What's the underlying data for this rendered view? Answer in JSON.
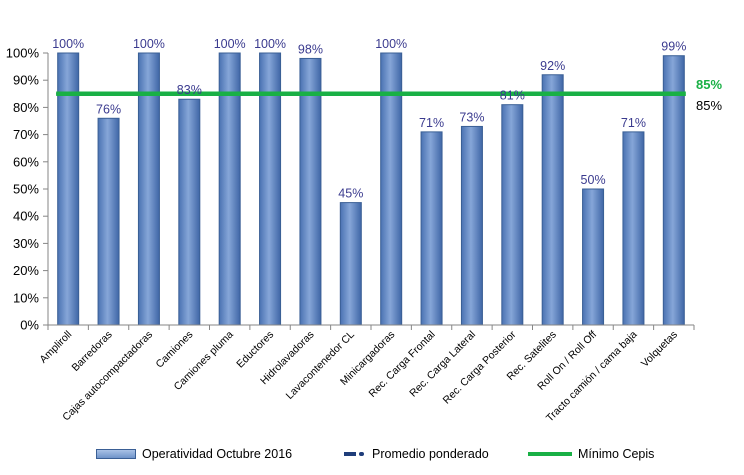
{
  "chart_data": {
    "type": "bar",
    "categories": [
      "Ampliroll",
      "Barredoras",
      "Cajas autocompactadoras",
      "Camiones",
      "Camiones pluma",
      "Eductores",
      "Hidrolavadoras",
      "Lavacontenedor CL",
      "Minicargadoras",
      "Rec. Carga Frontal",
      "Rec. Carga Lateral",
      "Rec. Carga Posterior",
      "Rec. Satelites",
      "Roll On / Roll Off",
      "Tracto camión / cama baja",
      "Volquetas"
    ],
    "series": [
      {
        "name": "Operatividad Octubre 2016",
        "values": [
          100,
          76,
          100,
          83,
          100,
          100,
          98,
          45,
          100,
          71,
          73,
          81,
          92,
          50,
          71,
          99
        ],
        "labels": [
          "100%",
          "76%",
          "100%",
          "83%",
          "100%",
          "100%",
          "98%",
          "45%",
          "100%",
          "71%",
          "73%",
          "81%",
          "92%",
          "50%",
          "71%",
          "99%"
        ],
        "color": "#4f81bd"
      },
      {
        "name": "Promedio ponderado",
        "value": 85,
        "label": "85%",
        "color": "#1f3d7a"
      },
      {
        "name": "Mínimo Cepis",
        "value": 85,
        "label": "85%",
        "color": "#19b045"
      }
    ],
    "yticks": [
      "0%",
      "10%",
      "20%",
      "30%",
      "40%",
      "50%",
      "60%",
      "70%",
      "80%",
      "90%",
      "100%"
    ],
    "ylim": [
      0,
      100
    ],
    "label_color": "#3b3b8f",
    "grid": false,
    "legend_position": "bottom"
  }
}
